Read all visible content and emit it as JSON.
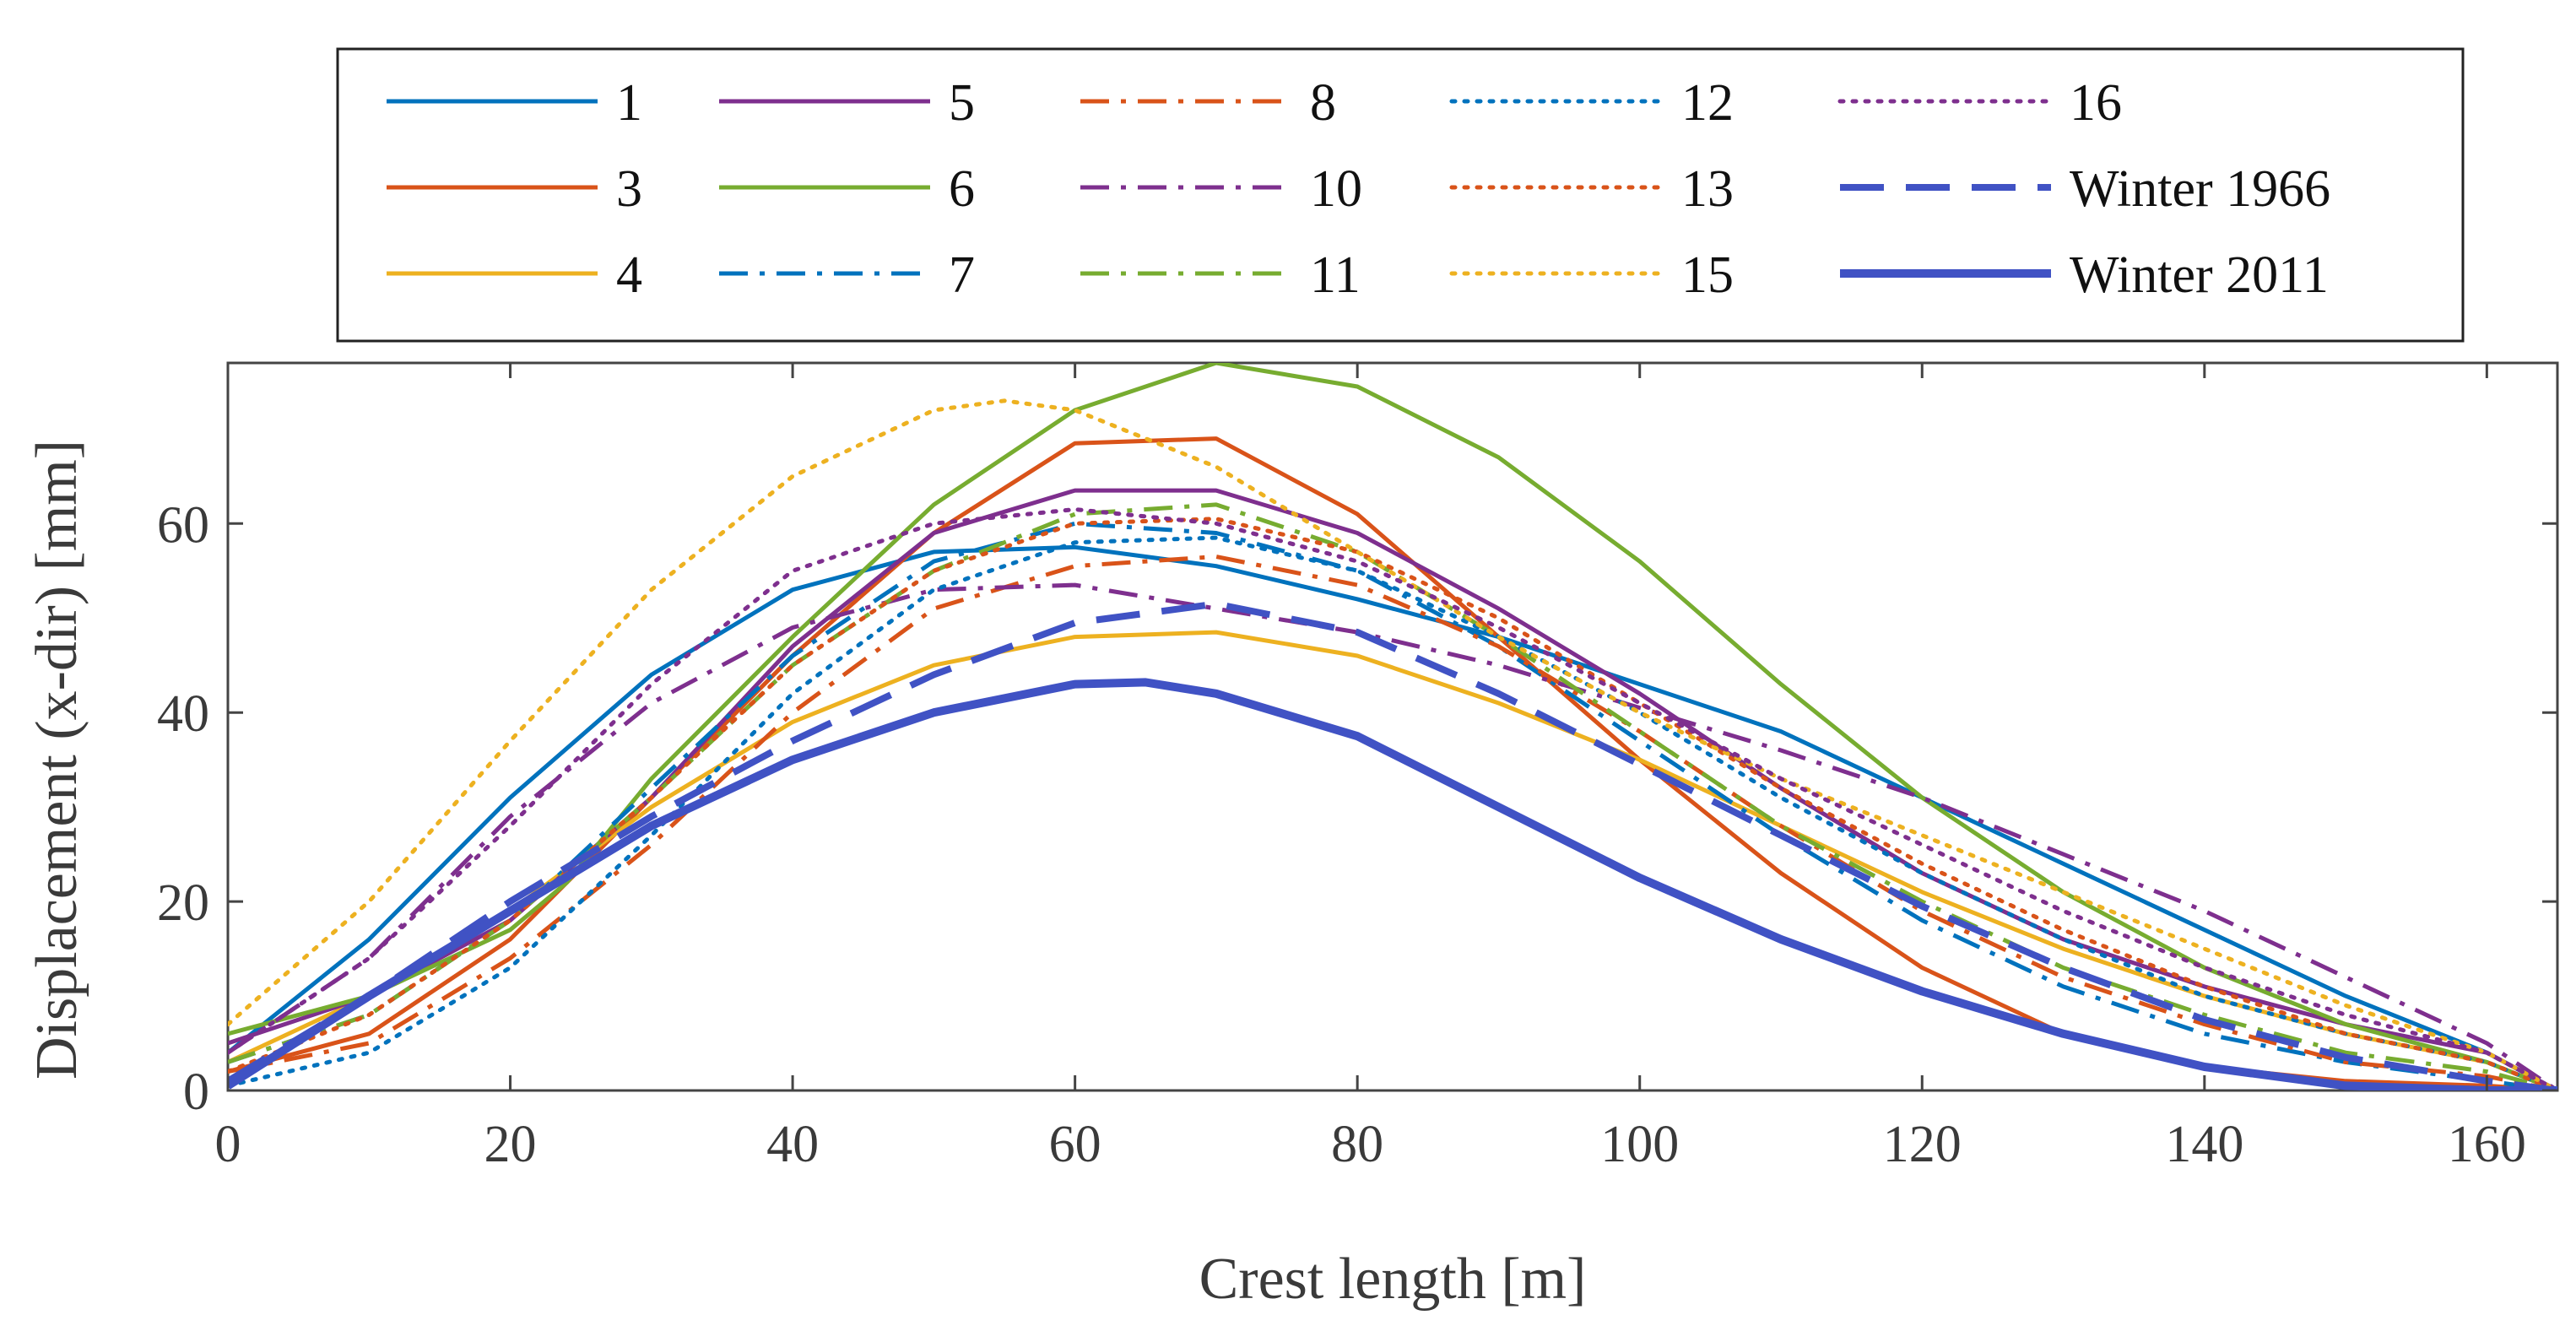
{
  "chart_data": {
    "type": "line",
    "title": "",
    "xlabel": "Crest length [m]",
    "ylabel": "Displacement (x-dir) [mm]",
    "xlim": [
      0,
      165
    ],
    "ylim": [
      0,
      77
    ],
    "xticks": [
      0,
      20,
      40,
      60,
      80,
      100,
      120,
      140,
      160
    ],
    "yticks": [
      0,
      20,
      40,
      60
    ],
    "grid": false,
    "legend_position": "top, outside plot, 5 columns",
    "series": [
      {
        "name": "1",
        "color": "#0072bd",
        "style": "solid",
        "width": 5,
        "x": [
          0,
          10,
          20,
          30,
          40,
          50,
          60,
          70,
          80,
          90,
          100,
          110,
          120,
          130,
          140,
          150,
          160,
          165
        ],
        "y": [
          4,
          16,
          31,
          44,
          53,
          57,
          57.5,
          55.5,
          52,
          48,
          43,
          38,
          31,
          24,
          17,
          10,
          4,
          0
        ]
      },
      {
        "name": "3",
        "color": "#d95319",
        "style": "solid",
        "width": 5,
        "x": [
          0,
          10,
          20,
          30,
          40,
          50,
          60,
          70,
          80,
          90,
          100,
          110,
          120,
          130,
          140,
          150,
          160,
          165
        ],
        "y": [
          2,
          6,
          16,
          31,
          46,
          59,
          68.5,
          69,
          61,
          48,
          35,
          23,
          13,
          6,
          2.5,
          1,
          0.5,
          0
        ]
      },
      {
        "name": "4",
        "color": "#edb120",
        "style": "solid",
        "width": 5,
        "x": [
          0,
          10,
          20,
          30,
          40,
          50,
          60,
          70,
          80,
          90,
          100,
          110,
          120,
          130,
          140,
          150,
          160,
          165
        ],
        "y": [
          3,
          10,
          19,
          30,
          39,
          45,
          48,
          48.5,
          46,
          41,
          35,
          28,
          21,
          15,
          10,
          6,
          3,
          0
        ]
      },
      {
        "name": "5",
        "color": "#7e2f8e",
        "style": "solid",
        "width": 5,
        "x": [
          0,
          10,
          20,
          30,
          40,
          50,
          60,
          70,
          80,
          90,
          100,
          110,
          120,
          130,
          140,
          150,
          160,
          165
        ],
        "y": [
          5,
          10,
          18,
          31,
          47,
          59,
          63.5,
          63.5,
          59,
          51,
          42,
          32,
          23,
          16,
          11,
          7,
          4,
          0
        ]
      },
      {
        "name": "6",
        "color": "#77ac30",
        "style": "solid",
        "width": 5,
        "x": [
          0,
          10,
          20,
          24,
          30,
          40,
          50,
          60,
          70,
          80,
          90,
          100,
          110,
          120,
          130,
          140,
          150,
          160,
          165
        ],
        "y": [
          6,
          10,
          17,
          22,
          33,
          48,
          62,
          72,
          77,
          74.5,
          67,
          56,
          43,
          31,
          21,
          13,
          7,
          3,
          0
        ]
      },
      {
        "name": "7",
        "color": "#0072bd",
        "style": "dashdot",
        "width": 5,
        "x": [
          0,
          10,
          20,
          30,
          40,
          50,
          60,
          70,
          80,
          90,
          100,
          110,
          120,
          130,
          140,
          150,
          160,
          165
        ],
        "y": [
          3,
          8,
          18,
          32,
          46,
          56,
          60,
          59,
          55,
          47,
          37,
          27,
          18,
          11,
          6,
          3,
          1,
          0
        ]
      },
      {
        "name": "8",
        "color": "#d95319",
        "style": "dashdot",
        "width": 5,
        "x": [
          0,
          10,
          20,
          30,
          40,
          50,
          60,
          70,
          80,
          90,
          100,
          110,
          120,
          130,
          140,
          150,
          160,
          165
        ],
        "y": [
          2,
          5,
          14,
          26,
          40,
          51,
          55.5,
          56.5,
          53.5,
          47,
          38,
          28,
          19,
          12,
          7,
          3,
          1.5,
          0
        ]
      },
      {
        "name": "10",
        "color": "#7e2f8e",
        "style": "dashdot",
        "width": 5,
        "x": [
          0,
          10,
          20,
          30,
          40,
          50,
          60,
          70,
          80,
          90,
          100,
          110,
          120,
          130,
          140,
          150,
          160,
          165
        ],
        "y": [
          4,
          14,
          29,
          41,
          49,
          53,
          53.5,
          51,
          48.5,
          45,
          40.5,
          36,
          31,
          25,
          19,
          12,
          5,
          0
        ]
      },
      {
        "name": "11",
        "color": "#77ac30",
        "style": "dashdot",
        "width": 5,
        "x": [
          0,
          10,
          20,
          30,
          40,
          50,
          60,
          70,
          80,
          90,
          100,
          110,
          120,
          130,
          140,
          150,
          160,
          165
        ],
        "y": [
          3,
          8,
          18,
          31,
          45,
          55,
          61,
          62,
          57,
          48,
          38,
          28,
          20,
          13,
          8,
          4,
          2,
          0
        ]
      },
      {
        "name": "12",
        "color": "#0072bd",
        "style": "dotted",
        "width": 5,
        "x": [
          0,
          10,
          20,
          30,
          40,
          50,
          60,
          70,
          80,
          90,
          100,
          110,
          120,
          130,
          140,
          150,
          160,
          165
        ],
        "y": [
          0.5,
          4,
          13,
          27,
          42,
          53,
          58,
          58.5,
          55,
          48,
          40,
          31,
          23,
          16,
          10,
          6,
          3,
          0
        ]
      },
      {
        "name": "13",
        "color": "#d95319",
        "style": "dotted",
        "width": 5,
        "x": [
          0,
          10,
          20,
          30,
          40,
          50,
          60,
          70,
          80,
          90,
          100,
          110,
          120,
          130,
          140,
          150,
          160,
          165
        ],
        "y": [
          2,
          8,
          18,
          31,
          45,
          55,
          60,
          60.5,
          57,
          50,
          41,
          32,
          24,
          17,
          11,
          6,
          3,
          0
        ]
      },
      {
        "name": "15",
        "color": "#edb120",
        "style": "dotted",
        "width": 5,
        "x": [
          0,
          10,
          20,
          30,
          40,
          50,
          55,
          60,
          70,
          80,
          90,
          100,
          110,
          120,
          130,
          140,
          150,
          160,
          165
        ],
        "y": [
          7,
          20,
          37,
          53,
          65,
          72,
          73,
          72,
          66,
          57,
          48,
          40,
          33,
          27,
          21,
          15,
          9,
          4,
          0
        ]
      },
      {
        "name": "16",
        "color": "#7e2f8e",
        "style": "dotted",
        "width": 5,
        "x": [
          0,
          10,
          20,
          30,
          40,
          50,
          60,
          70,
          80,
          90,
          100,
          110,
          120,
          130,
          140,
          150,
          160,
          165
        ],
        "y": [
          4,
          14,
          28,
          43,
          55,
          60,
          61.5,
          60,
          56,
          49,
          41,
          33,
          26,
          19,
          13,
          8,
          4,
          0
        ]
      },
      {
        "name": "Winter 1966",
        "color": "#4052c4",
        "style": "dashed",
        "width": 8,
        "x": [
          0,
          10,
          20,
          30,
          40,
          50,
          60,
          70,
          80,
          90,
          100,
          110,
          120,
          130,
          140,
          150,
          160,
          165
        ],
        "y": [
          1,
          10,
          20,
          29,
          37,
          44,
          49.5,
          51.5,
          48.5,
          42,
          34.5,
          27,
          19.5,
          13,
          7.5,
          3.5,
          1,
          0
        ]
      },
      {
        "name": "Winter 2011",
        "color": "#4052c4",
        "style": "solid",
        "width": 10,
        "x": [
          0,
          10,
          20,
          30,
          40,
          50,
          60,
          65,
          70,
          80,
          90,
          100,
          110,
          120,
          130,
          140,
          150,
          160,
          165
        ],
        "y": [
          0.5,
          10,
          19,
          28,
          35,
          40,
          43,
          43.2,
          42,
          37.5,
          30,
          22.5,
          16,
          10.5,
          6,
          2.5,
          0.5,
          0,
          0
        ]
      }
    ]
  }
}
